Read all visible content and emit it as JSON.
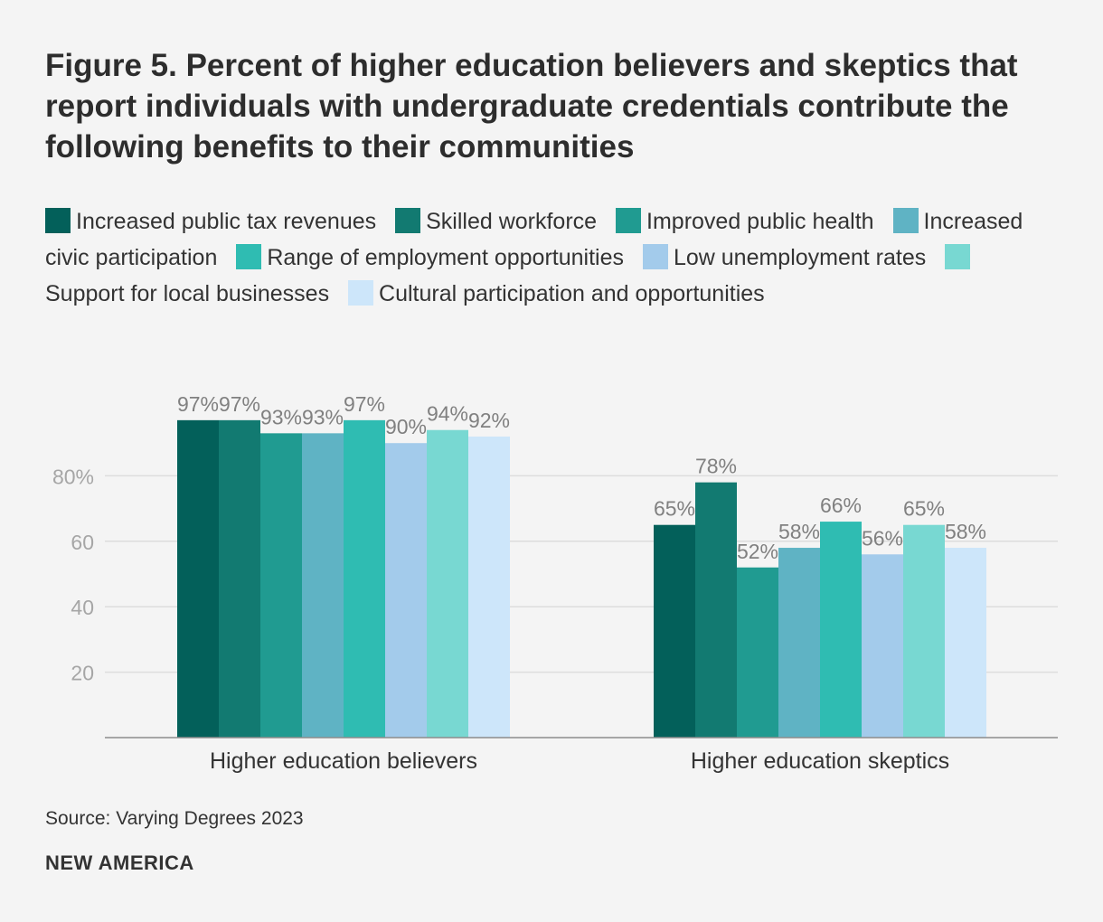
{
  "chart_data": {
    "type": "bar",
    "title": "Figure 5. Percent of higher education believers and skeptics that report individuals with undergraduate credentials contribute the following benefits to their communities",
    "categories": [
      "Higher education believers",
      "Higher education skeptics"
    ],
    "series": [
      {
        "name": "Increased public tax revenues",
        "color": "#03605a",
        "values": [
          97,
          65
        ],
        "labels": [
          "97%",
          "65%"
        ]
      },
      {
        "name": "Skilled workforce",
        "color": "#127a71",
        "values": [
          97,
          78
        ],
        "labels": [
          "97%",
          "78%"
        ]
      },
      {
        "name": "Improved public health",
        "color": "#209b91",
        "values": [
          93,
          52
        ],
        "labels": [
          "93%",
          "52%"
        ]
      },
      {
        "name": "Increased civic participation",
        "color": "#5fb3c4",
        "values": [
          93,
          58
        ],
        "labels": [
          "93%",
          "58%"
        ]
      },
      {
        "name": "Range of employment opportunities",
        "color": "#2fbcb2",
        "values": [
          97,
          66
        ],
        "labels": [
          "97%",
          "66%"
        ]
      },
      {
        "name": "Low unemployment rates",
        "color": "#a3cbeb",
        "values": [
          90,
          56
        ],
        "labels": [
          "90%",
          "56%"
        ]
      },
      {
        "name": "Support for local businesses",
        "color": "#78d8d2",
        "values": [
          94,
          65
        ],
        "labels": [
          "94%",
          "65%"
        ]
      },
      {
        "name": "Cultural participation and opportunities",
        "color": "#cde6fa",
        "values": [
          92,
          58
        ],
        "labels": [
          "92%",
          "58%"
        ]
      }
    ],
    "yticks": [
      20,
      40,
      60,
      80
    ],
    "ytick_labels": [
      "20",
      "40",
      "60",
      "80%"
    ],
    "ylim": [
      0,
      100
    ],
    "grid": true,
    "xlabel": "",
    "ylabel": "",
    "legend_position": "top"
  },
  "source": "Source: Varying Degrees 2023",
  "brand": "NEW AMERICA"
}
